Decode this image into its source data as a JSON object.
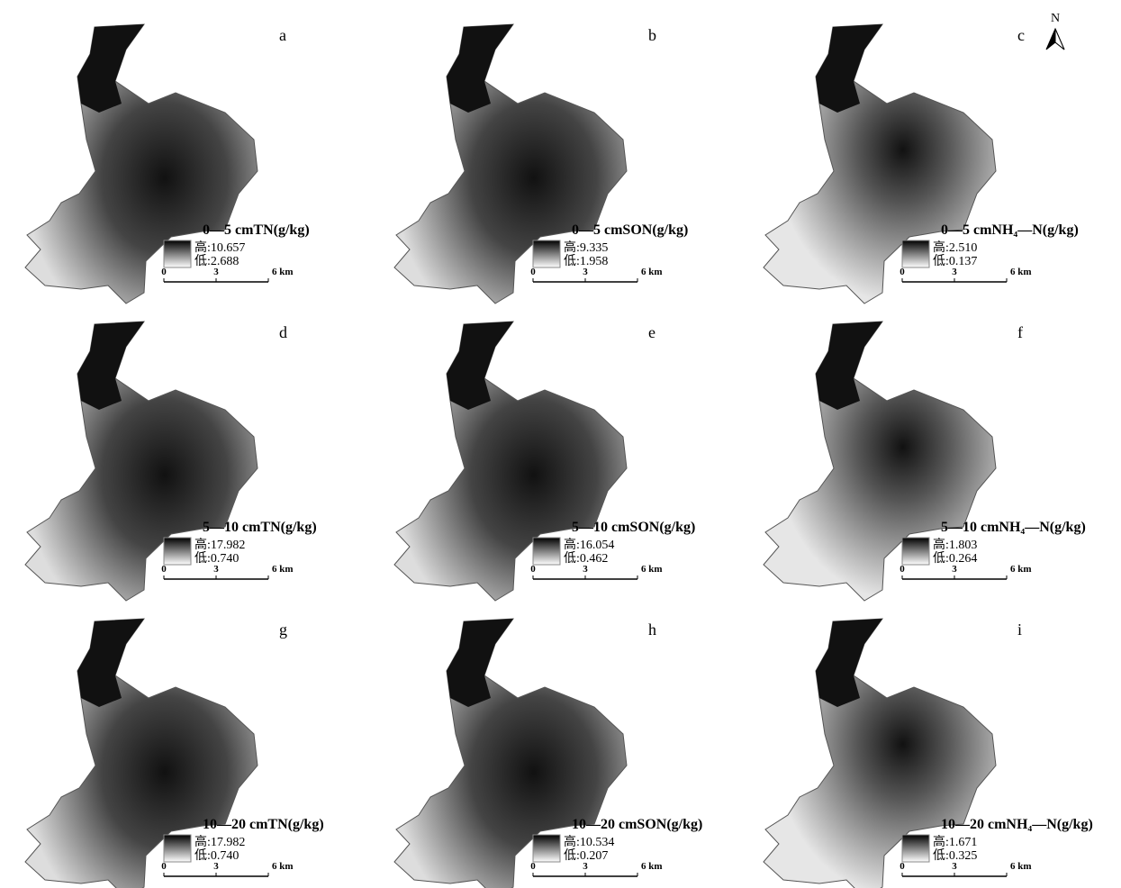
{
  "north": "N",
  "panels": [
    {
      "letter": "a",
      "title": "0—5 cmTN(g/kg)",
      "high": "高:10.657",
      "low": "低:2.688",
      "scale": [
        "0",
        "3",
        "6 km"
      ]
    },
    {
      "letter": "b",
      "title": "0—5 cmSON(g/kg)",
      "high": "高:9.335",
      "low": "低:1.958",
      "scale": [
        "0",
        "3",
        "6 km"
      ]
    },
    {
      "letter": "c",
      "title": "0—5 cmNH₄—N(g/kg)",
      "high": "高:2.510",
      "low": "低:0.137",
      "scale": [
        "0",
        "3",
        "6 km"
      ]
    },
    {
      "letter": "d",
      "title": "5—10 cmTN(g/kg)",
      "high": "高:17.982",
      "low": "低:0.740",
      "scale": [
        "0",
        "3",
        "6 km"
      ]
    },
    {
      "letter": "e",
      "title": "5—10 cmSON(g/kg)",
      "high": "高:16.054",
      "low": "低:0.462",
      "scale": [
        "0",
        "3",
        "6 km"
      ]
    },
    {
      "letter": "f",
      "title": "5—10 cmNH₄—N(g/kg)",
      "high": "高:1.803",
      "low": "低:0.264",
      "scale": [
        "0",
        "3",
        "6 km"
      ]
    },
    {
      "letter": "g",
      "title": "10—20 cmTN(g/kg)",
      "high": "高:17.982",
      "low": "低:0.740",
      "scale": [
        "0",
        "3",
        "6 km"
      ]
    },
    {
      "letter": "h",
      "title": "10—20 cmSON(g/kg)",
      "high": "高:10.534",
      "low": "低:0.207",
      "scale": [
        "0",
        "3",
        "6 km"
      ]
    },
    {
      "letter": "i",
      "title": "10—20 cmNH₄—N(g/kg)",
      "high": "高:1.671",
      "low": "低:0.325",
      "scale": [
        "0",
        "3",
        "6 km"
      ]
    }
  ]
}
